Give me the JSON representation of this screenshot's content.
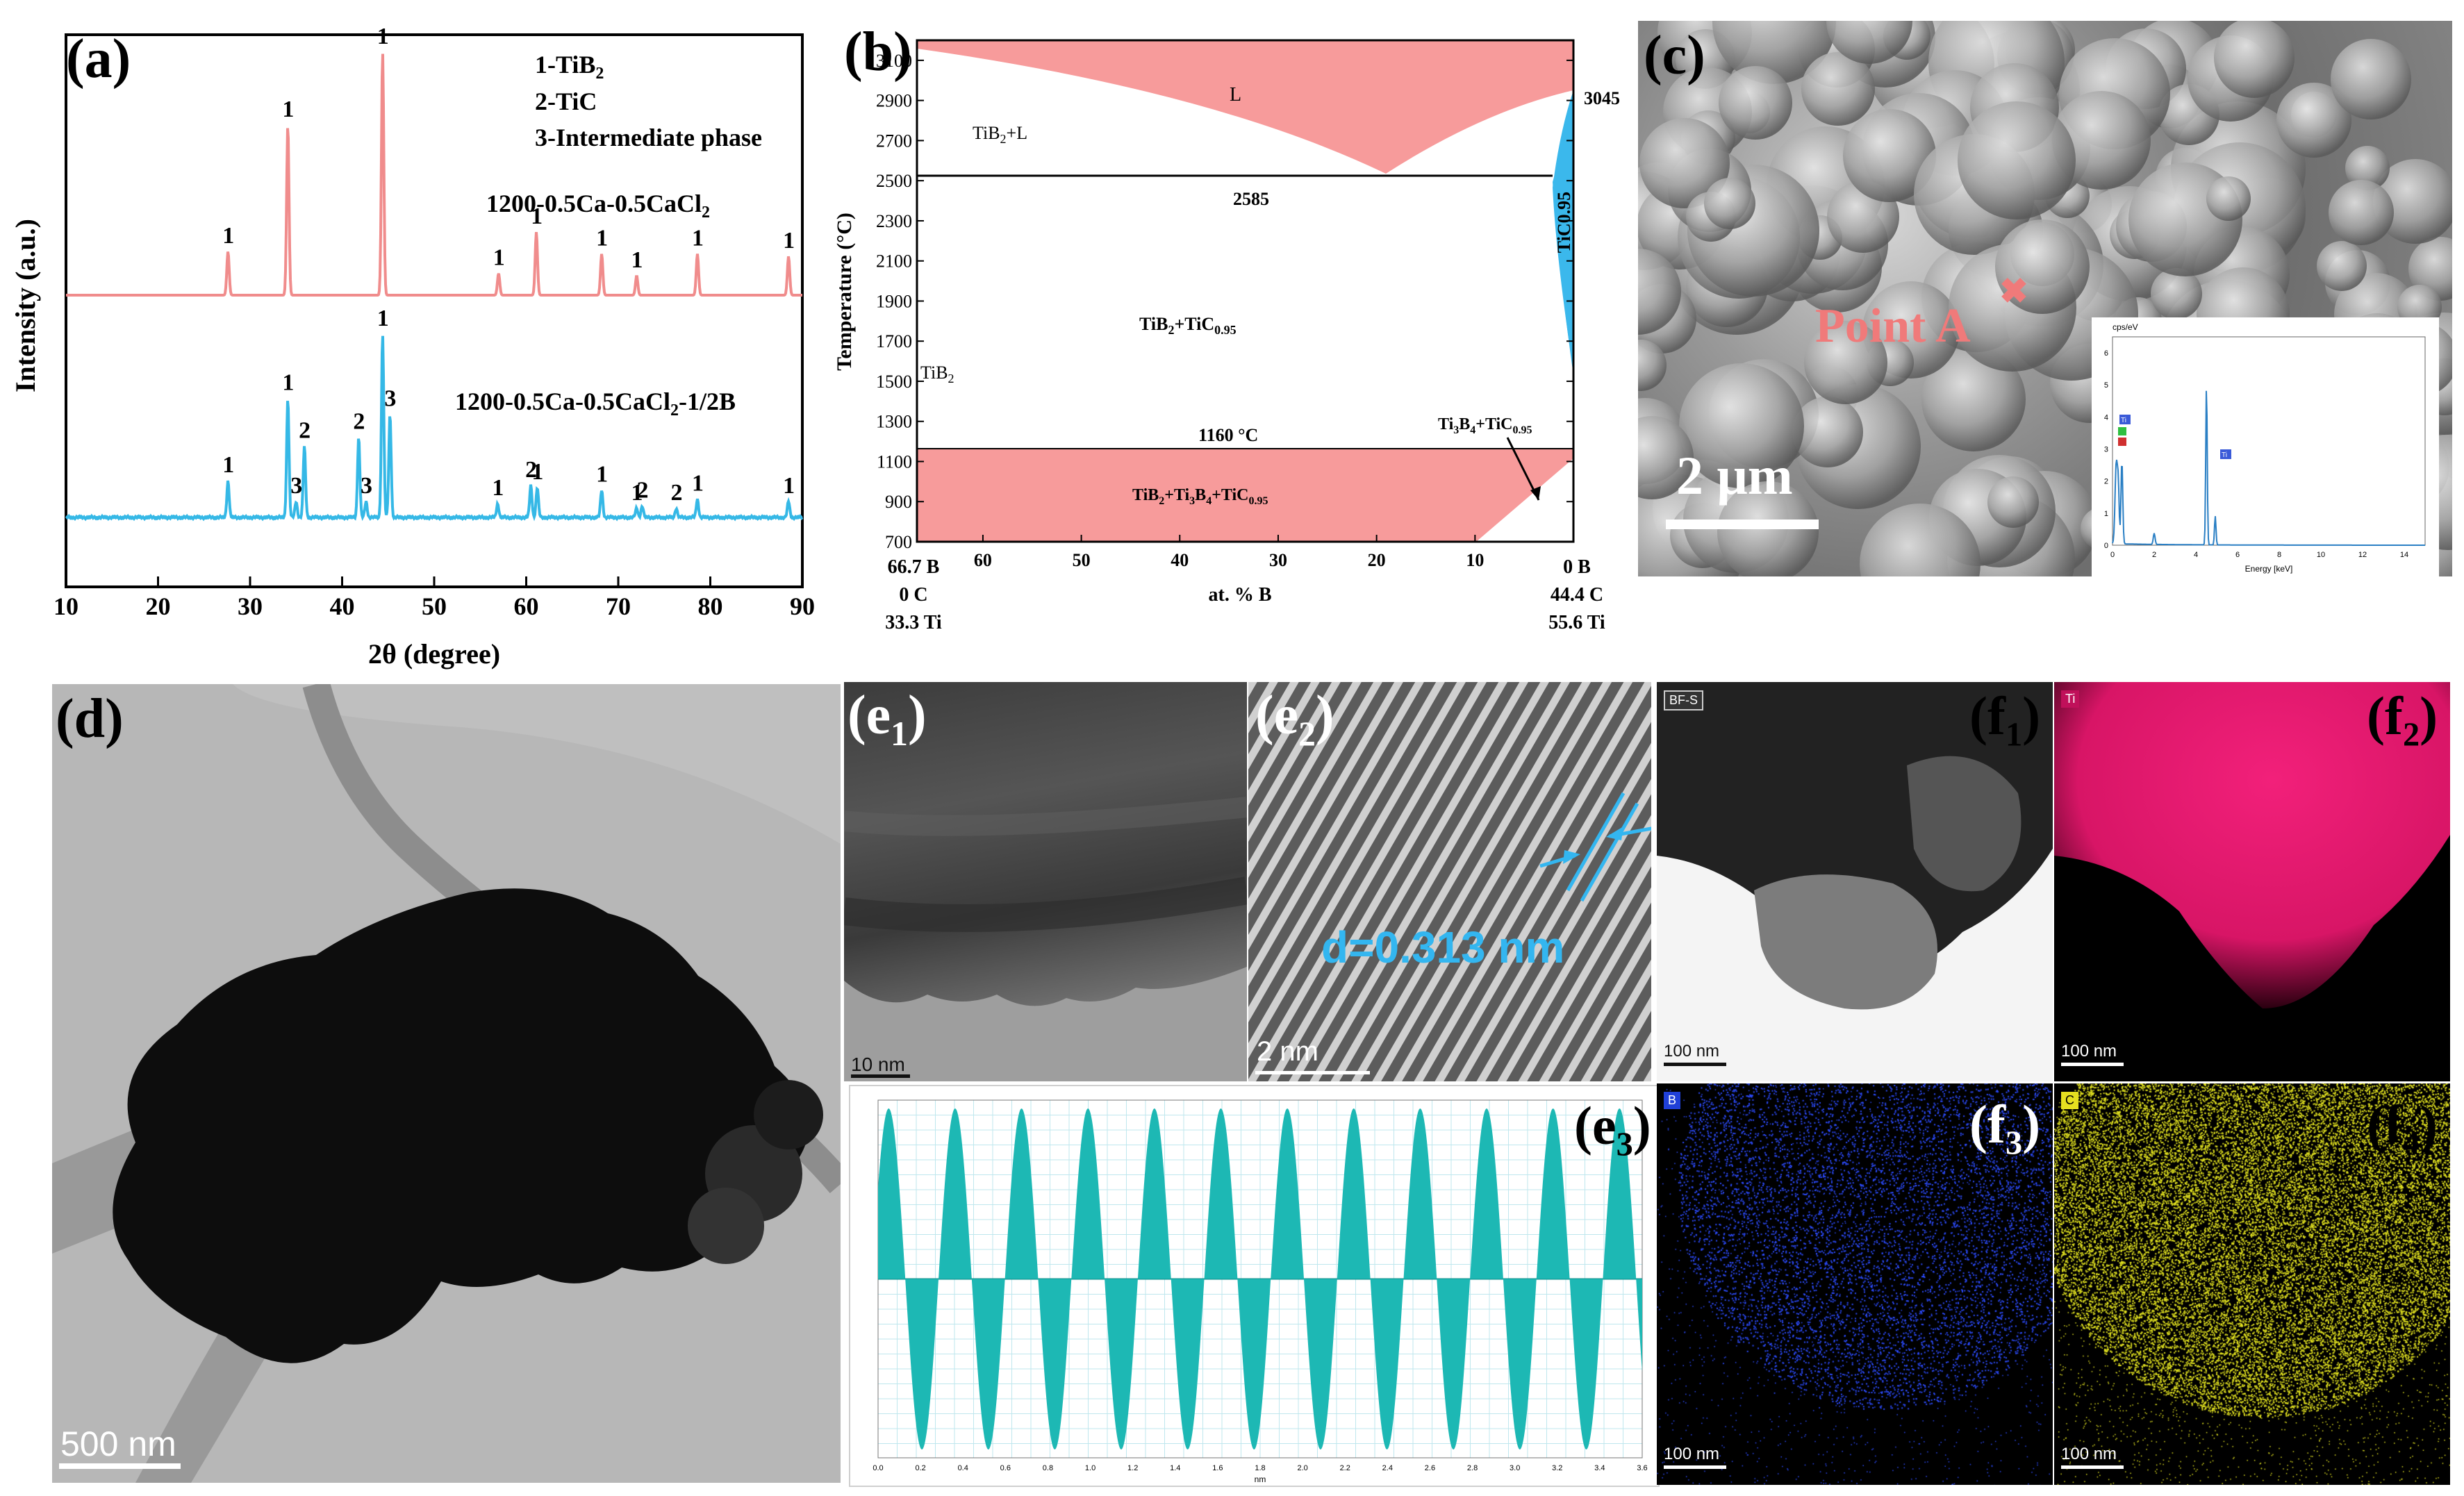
{
  "figure": {
    "a": {
      "label": "(a)",
      "legend": [
        "1-TiB",
        "2-TiC",
        "3-Intermediate phase"
      ],
      "legend_sub": [
        "2",
        "",
        ""
      ],
      "sample_top": "1200-0.5Ca-0.5CaCl",
      "sample_top_sub": "2",
      "sample_bottom": "1200-0.5Ca-0.5CaCl",
      "sample_bottom_sub": "2",
      "sample_bottom_suffix": "-1/2B",
      "xlabel": "2θ (degree)",
      "ylabel": "Intensity (a.u.)",
      "xticks": [
        "10",
        "20",
        "30",
        "40",
        "50",
        "60",
        "70",
        "80",
        "90"
      ]
    },
    "b": {
      "label": "(b)",
      "ylabel": "Temperature (°C)",
      "xlabel": "at. % B",
      "yticks": [
        "700",
        "900",
        "1100",
        "1300",
        "1500",
        "1700",
        "1900",
        "2100",
        "2300",
        "2500",
        "2700",
        "2900",
        "3100"
      ],
      "xticks": [
        "60",
        "50",
        "40",
        "30",
        "20",
        "10"
      ],
      "left_axis": [
        "66.7 B",
        "0 C",
        "33.3 Ti"
      ],
      "right_axis": [
        "0 B",
        "44.4 C",
        "55.6 Ti"
      ],
      "regions": {
        "L": "L",
        "TiB2_L": "TiB",
        "TiB2_L_suffix": "+L",
        "TiB2": "TiB",
        "TiB2_TiC": "TiB",
        "TiB2_TiC_mid": "+TiC",
        "TiB2_Ti3B4_TiC": "TiB",
        "TiB2_Ti3B4_TiC_mid": "+Ti",
        "TiB2_Ti3B4_TiC_mid2": "B",
        "TiB2_Ti3B4_TiC_mid3": "+TiC",
        "Ti3B4_TiC": "Ti",
        "Ti3B4_TiC_mid": "B",
        "Ti3B4_TiC_mid2": "+TiC",
        "TiC": "TiC0.95"
      },
      "subs": {
        "two": "2",
        "three": "3",
        "four": "4",
        "c095": "0.95"
      },
      "temps": {
        "eutectic": "2585",
        "peritectic": "1160 °C",
        "top": "3045"
      }
    },
    "c": {
      "label": "(c)",
      "point": "Point A",
      "scalebar": "2 μm",
      "inset_ylabel": "cps/eV",
      "inset_xlabel": "Energy [keV]",
      "inset_yticks": [
        "0",
        "1",
        "2",
        "3",
        "4",
        "5",
        "6"
      ],
      "inset_xticks": [
        "0",
        "2",
        "4",
        "6",
        "8",
        "10",
        "12",
        "14"
      ],
      "inset_tags": [
        "Ti",
        "Ti"
      ]
    },
    "d": {
      "label": "(d)",
      "scalebar": "500 nm"
    },
    "e1": {
      "label": "(e",
      "sub": "1",
      "close": ")",
      "scalebar": "10 nm"
    },
    "e2": {
      "label": "(e",
      "sub": "2",
      "close": ")",
      "scalebar": "2 nm",
      "dspacing": "d=0.313 nm"
    },
    "e3": {
      "label": "(e",
      "sub": "3",
      "close": ")",
      "xticks": [
        "0.0",
        "0.2",
        "0.4",
        "0.6",
        "0.8",
        "1.0",
        "1.2",
        "1.4",
        "1.6",
        "1.8",
        "2.0",
        "2.2",
        "2.4",
        "2.6",
        "2.8",
        "3.0",
        "3.2",
        "3.4",
        "3.6"
      ],
      "xlabel": "nm"
    },
    "f1": {
      "label": "(f",
      "sub": "1",
      "close": ")",
      "tag": "BF-S",
      "scalebar": "100 nm"
    },
    "f2": {
      "label": "(f",
      "sub": "2",
      "close": ")",
      "tag": "Ti",
      "scalebar": "100 nm"
    },
    "f3": {
      "label": "(f",
      "sub": "3",
      "close": ")",
      "tag": "B",
      "scalebar": "100 nm"
    },
    "f4": {
      "label": "(f",
      "sub": "4",
      "close": ")",
      "tag": "C",
      "scalebar": "100 nm"
    }
  },
  "chart_data": [
    {
      "type": "line",
      "panel": "a",
      "xlabel": "2θ (degree)",
      "ylabel": "Intensity (a.u.)",
      "xlim": [
        10,
        90
      ],
      "series": [
        {
          "name": "1200-0.5Ca-0.5CaCl2",
          "color": "#f08c8c",
          "peaks": [
            {
              "x": 27.6,
              "h": 0.18,
              "label": "1"
            },
            {
              "x": 34.1,
              "h": 0.7,
              "label": "1"
            },
            {
              "x": 44.4,
              "h": 1.0,
              "label": "1"
            },
            {
              "x": 57.0,
              "h": 0.09,
              "label": "1"
            },
            {
              "x": 61.1,
              "h": 0.26,
              "label": "1"
            },
            {
              "x": 68.2,
              "h": 0.17,
              "label": "1"
            },
            {
              "x": 72.0,
              "h": 0.08,
              "label": "1"
            },
            {
              "x": 78.6,
              "h": 0.17,
              "label": "1"
            },
            {
              "x": 88.5,
              "h": 0.16,
              "label": "1"
            }
          ]
        },
        {
          "name": "1200-0.5Ca-0.5CaCl2-1/2B",
          "color": "#35b8e6",
          "peaks": [
            {
              "x": 27.6,
              "h": 0.16,
              "label": "1"
            },
            {
              "x": 34.1,
              "h": 0.52,
              "label": "1"
            },
            {
              "x": 35.0,
              "h": 0.07,
              "label": "3"
            },
            {
              "x": 35.9,
              "h": 0.31,
              "label": "2"
            },
            {
              "x": 41.8,
              "h": 0.35,
              "label": "2"
            },
            {
              "x": 42.6,
              "h": 0.07,
              "label": "3"
            },
            {
              "x": 44.4,
              "h": 0.8,
              "label": "1"
            },
            {
              "x": 45.2,
              "h": 0.45,
              "label": "3"
            },
            {
              "x": 56.9,
              "h": 0.06,
              "label": "1"
            },
            {
              "x": 60.5,
              "h": 0.14,
              "label": "2"
            },
            {
              "x": 61.2,
              "h": 0.13,
              "label": "1"
            },
            {
              "x": 68.2,
              "h": 0.12,
              "label": "1"
            },
            {
              "x": 72.0,
              "h": 0.04,
              "label": "1"
            },
            {
              "x": 72.6,
              "h": 0.05,
              "label": "2"
            },
            {
              "x": 76.3,
              "h": 0.04,
              "label": "2"
            },
            {
              "x": 78.6,
              "h": 0.08,
              "label": "1"
            },
            {
              "x": 88.5,
              "h": 0.07,
              "label": "1"
            }
          ]
        }
      ]
    },
    {
      "type": "area",
      "panel": "b",
      "xlabel": "at. % B",
      "ylabel": "Temperature (°C)",
      "ylim": [
        700,
        3200
      ],
      "xlim": [
        66.7,
        0
      ]
    },
    {
      "type": "line",
      "panel": "e3",
      "xlabel": "nm",
      "xlim": [
        0,
        3.6
      ],
      "period_nm": 0.313
    }
  ]
}
